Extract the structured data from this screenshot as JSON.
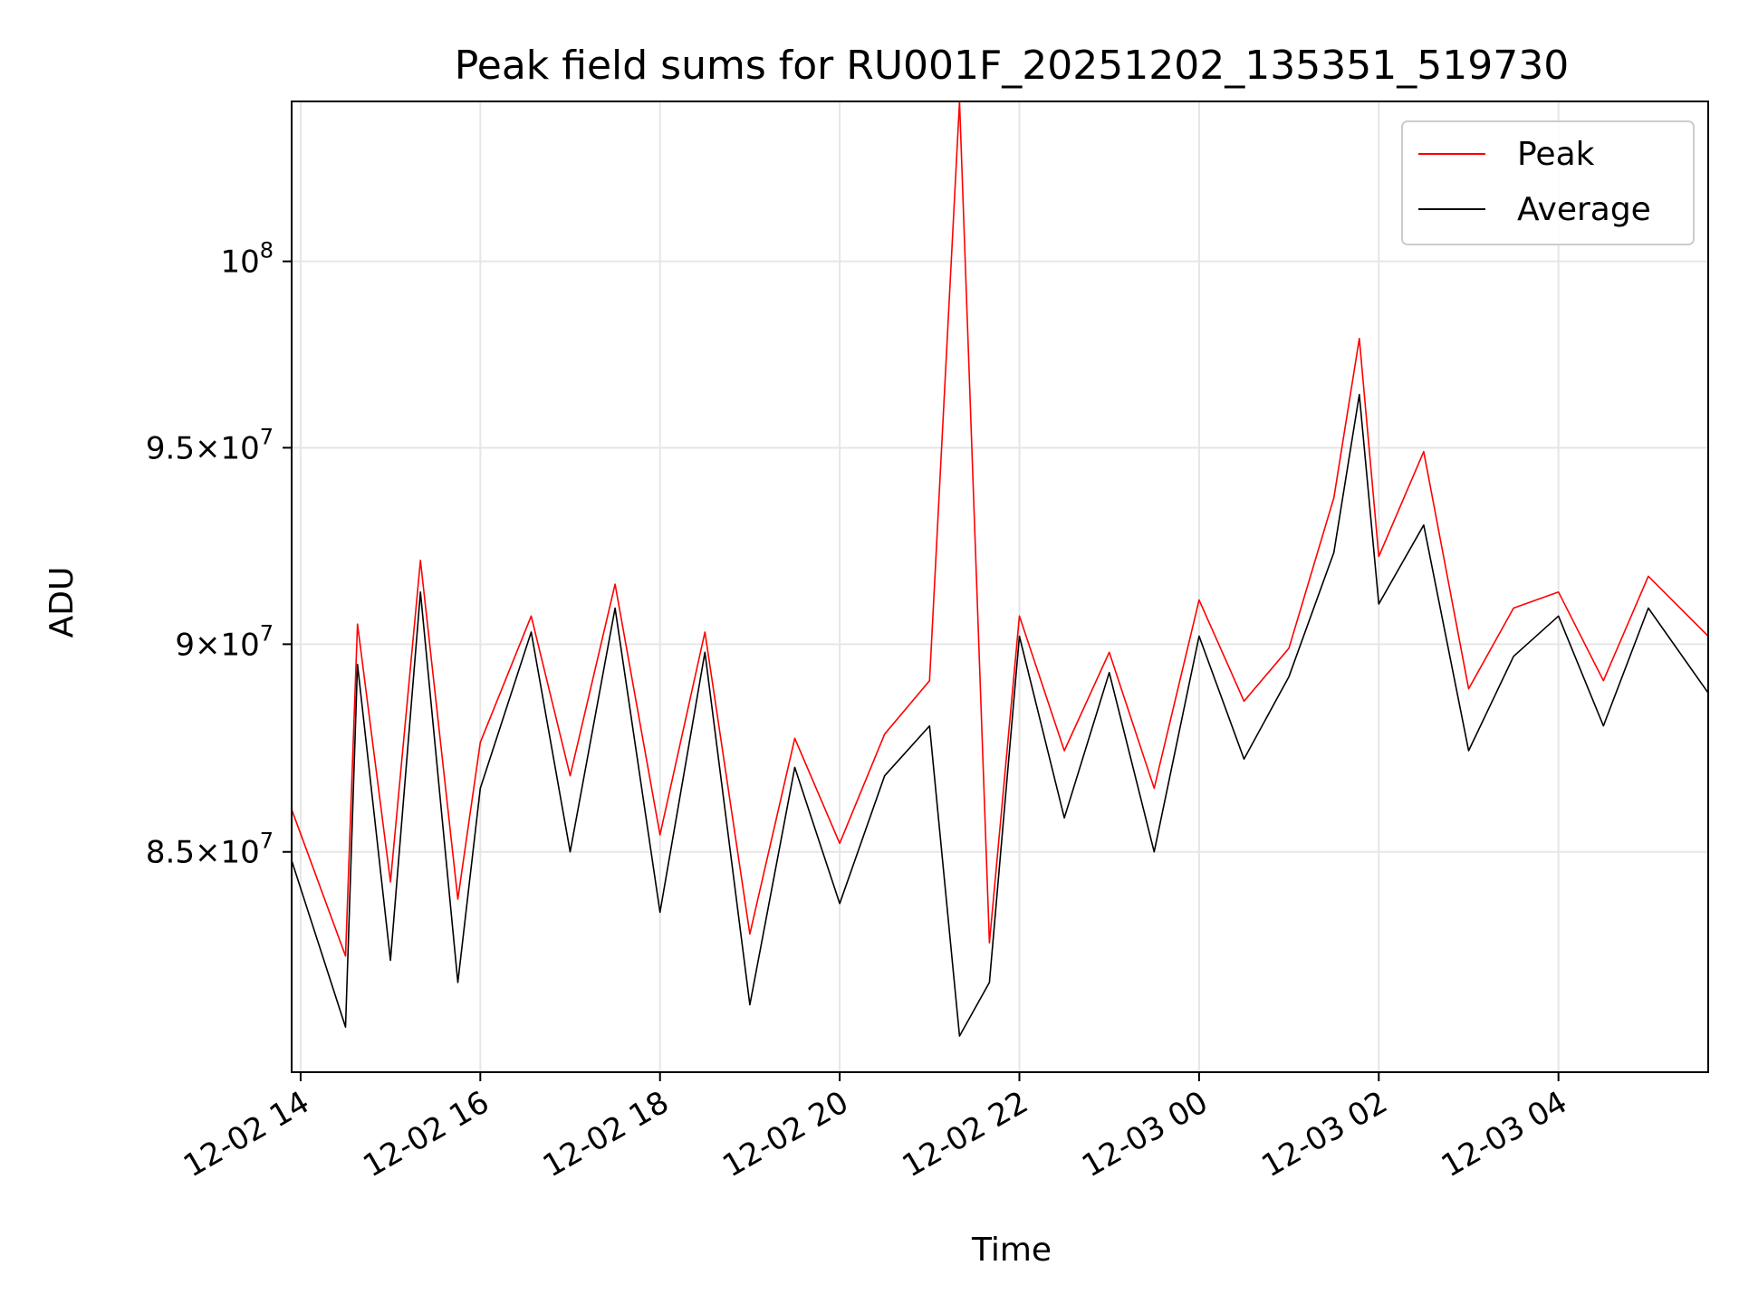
{
  "chart_data": {
    "type": "line",
    "title": "Peak field sums for RU001F_20251202_135351_519730",
    "xlabel": "Time",
    "ylabel": "ADU",
    "y_scale": "log",
    "ylim": [
      80000000,
      104500000
    ],
    "xlim": [
      "2025-12-02 13:54",
      "2025-12-03 05:40"
    ],
    "x_ticks": [
      {
        "x": "2025-12-02 14:00",
        "label": "12-02 14"
      },
      {
        "x": "2025-12-02 16:00",
        "label": "12-02 16"
      },
      {
        "x": "2025-12-02 18:00",
        "label": "12-02 18"
      },
      {
        "x": "2025-12-02 20:00",
        "label": "12-02 20"
      },
      {
        "x": "2025-12-02 22:00",
        "label": "12-02 22"
      },
      {
        "x": "2025-12-03 00:00",
        "label": "12-03 00"
      },
      {
        "x": "2025-12-03 02:00",
        "label": "12-03 02"
      },
      {
        "x": "2025-12-03 04:00",
        "label": "12-03 04"
      }
    ],
    "y_ticks": [
      {
        "value": 85000000,
        "mantissa": "8.5",
        "base": "10",
        "exp": "7"
      },
      {
        "value": 90000000,
        "mantissa": "9",
        "base": "10",
        "exp": "7"
      },
      {
        "value": 95000000,
        "mantissa": "9.5",
        "base": "10",
        "exp": "7"
      },
      {
        "value": 100000000,
        "mantissa": "",
        "base": "10",
        "exp": "8"
      }
    ],
    "grid": true,
    "legend": {
      "position": "top-right"
    },
    "series": [
      {
        "name": "Peak",
        "color": "#ff0000",
        "x": [
          "2025-12-02 13:54",
          "2025-12-02 14:30",
          "2025-12-02 14:38",
          "2025-12-02 15:00",
          "2025-12-02 15:20",
          "2025-12-02 15:45",
          "2025-12-02 16:00",
          "2025-12-02 16:34",
          "2025-12-02 17:00",
          "2025-12-02 17:30",
          "2025-12-02 18:00",
          "2025-12-02 18:30",
          "2025-12-02 19:00",
          "2025-12-02 19:30",
          "2025-12-02 20:00",
          "2025-12-02 20:30",
          "2025-12-02 21:00",
          "2025-12-02 21:20",
          "2025-12-02 21:40",
          "2025-12-02 22:00",
          "2025-12-02 22:30",
          "2025-12-02 23:00",
          "2025-12-02 23:30",
          "2025-12-03 00:00",
          "2025-12-03 00:30",
          "2025-12-03 01:00",
          "2025-12-03 01:30",
          "2025-12-03 01:47",
          "2025-12-03 02:00",
          "2025-12-03 02:30",
          "2025-12-03 03:00",
          "2025-12-03 03:30",
          "2025-12-03 04:00",
          "2025-12-03 04:30",
          "2025-12-03 05:00",
          "2025-12-03 05:40"
        ],
        "y": [
          86000000,
          82600000,
          90500000,
          84300000,
          92100000,
          83900000,
          87600000,
          90700000,
          86800000,
          91500000,
          85400000,
          90300000,
          83100000,
          87700000,
          85200000,
          87800000,
          89100000,
          104500000,
          82900000,
          90700000,
          87400000,
          89800000,
          86500000,
          91100000,
          88600000,
          89900000,
          93700000,
          97900000,
          92200000,
          94900000,
          88900000,
          90900000,
          91300000,
          89100000,
          91700000,
          90200000
        ]
      },
      {
        "name": "Average",
        "color": "#000000",
        "x": [
          "2025-12-02 13:54",
          "2025-12-02 14:30",
          "2025-12-02 14:38",
          "2025-12-02 15:00",
          "2025-12-02 15:20",
          "2025-12-02 15:45",
          "2025-12-02 16:00",
          "2025-12-02 16:34",
          "2025-12-02 17:00",
          "2025-12-02 17:30",
          "2025-12-02 18:00",
          "2025-12-02 18:30",
          "2025-12-02 19:00",
          "2025-12-02 19:30",
          "2025-12-02 20:00",
          "2025-12-02 20:30",
          "2025-12-02 21:00",
          "2025-12-02 21:20",
          "2025-12-02 21:40",
          "2025-12-02 22:00",
          "2025-12-02 22:30",
          "2025-12-02 23:00",
          "2025-12-02 23:30",
          "2025-12-03 00:00",
          "2025-12-03 00:30",
          "2025-12-03 01:00",
          "2025-12-03 01:30",
          "2025-12-03 01:47",
          "2025-12-03 02:00",
          "2025-12-03 02:30",
          "2025-12-03 03:00",
          "2025-12-03 03:30",
          "2025-12-03 04:00",
          "2025-12-03 04:30",
          "2025-12-03 05:00",
          "2025-12-03 05:40"
        ],
        "y": [
          84800000,
          81000000,
          89500000,
          82500000,
          91300000,
          82000000,
          86500000,
          90300000,
          85000000,
          90900000,
          83600000,
          89800000,
          81500000,
          87000000,
          83800000,
          86800000,
          88000000,
          80800000,
          82000000,
          90200000,
          85800000,
          89300000,
          85000000,
          90200000,
          87200000,
          89200000,
          92300000,
          96400000,
          91000000,
          93000000,
          87400000,
          89700000,
          90700000,
          88000000,
          90900000,
          88800000
        ]
      }
    ]
  }
}
